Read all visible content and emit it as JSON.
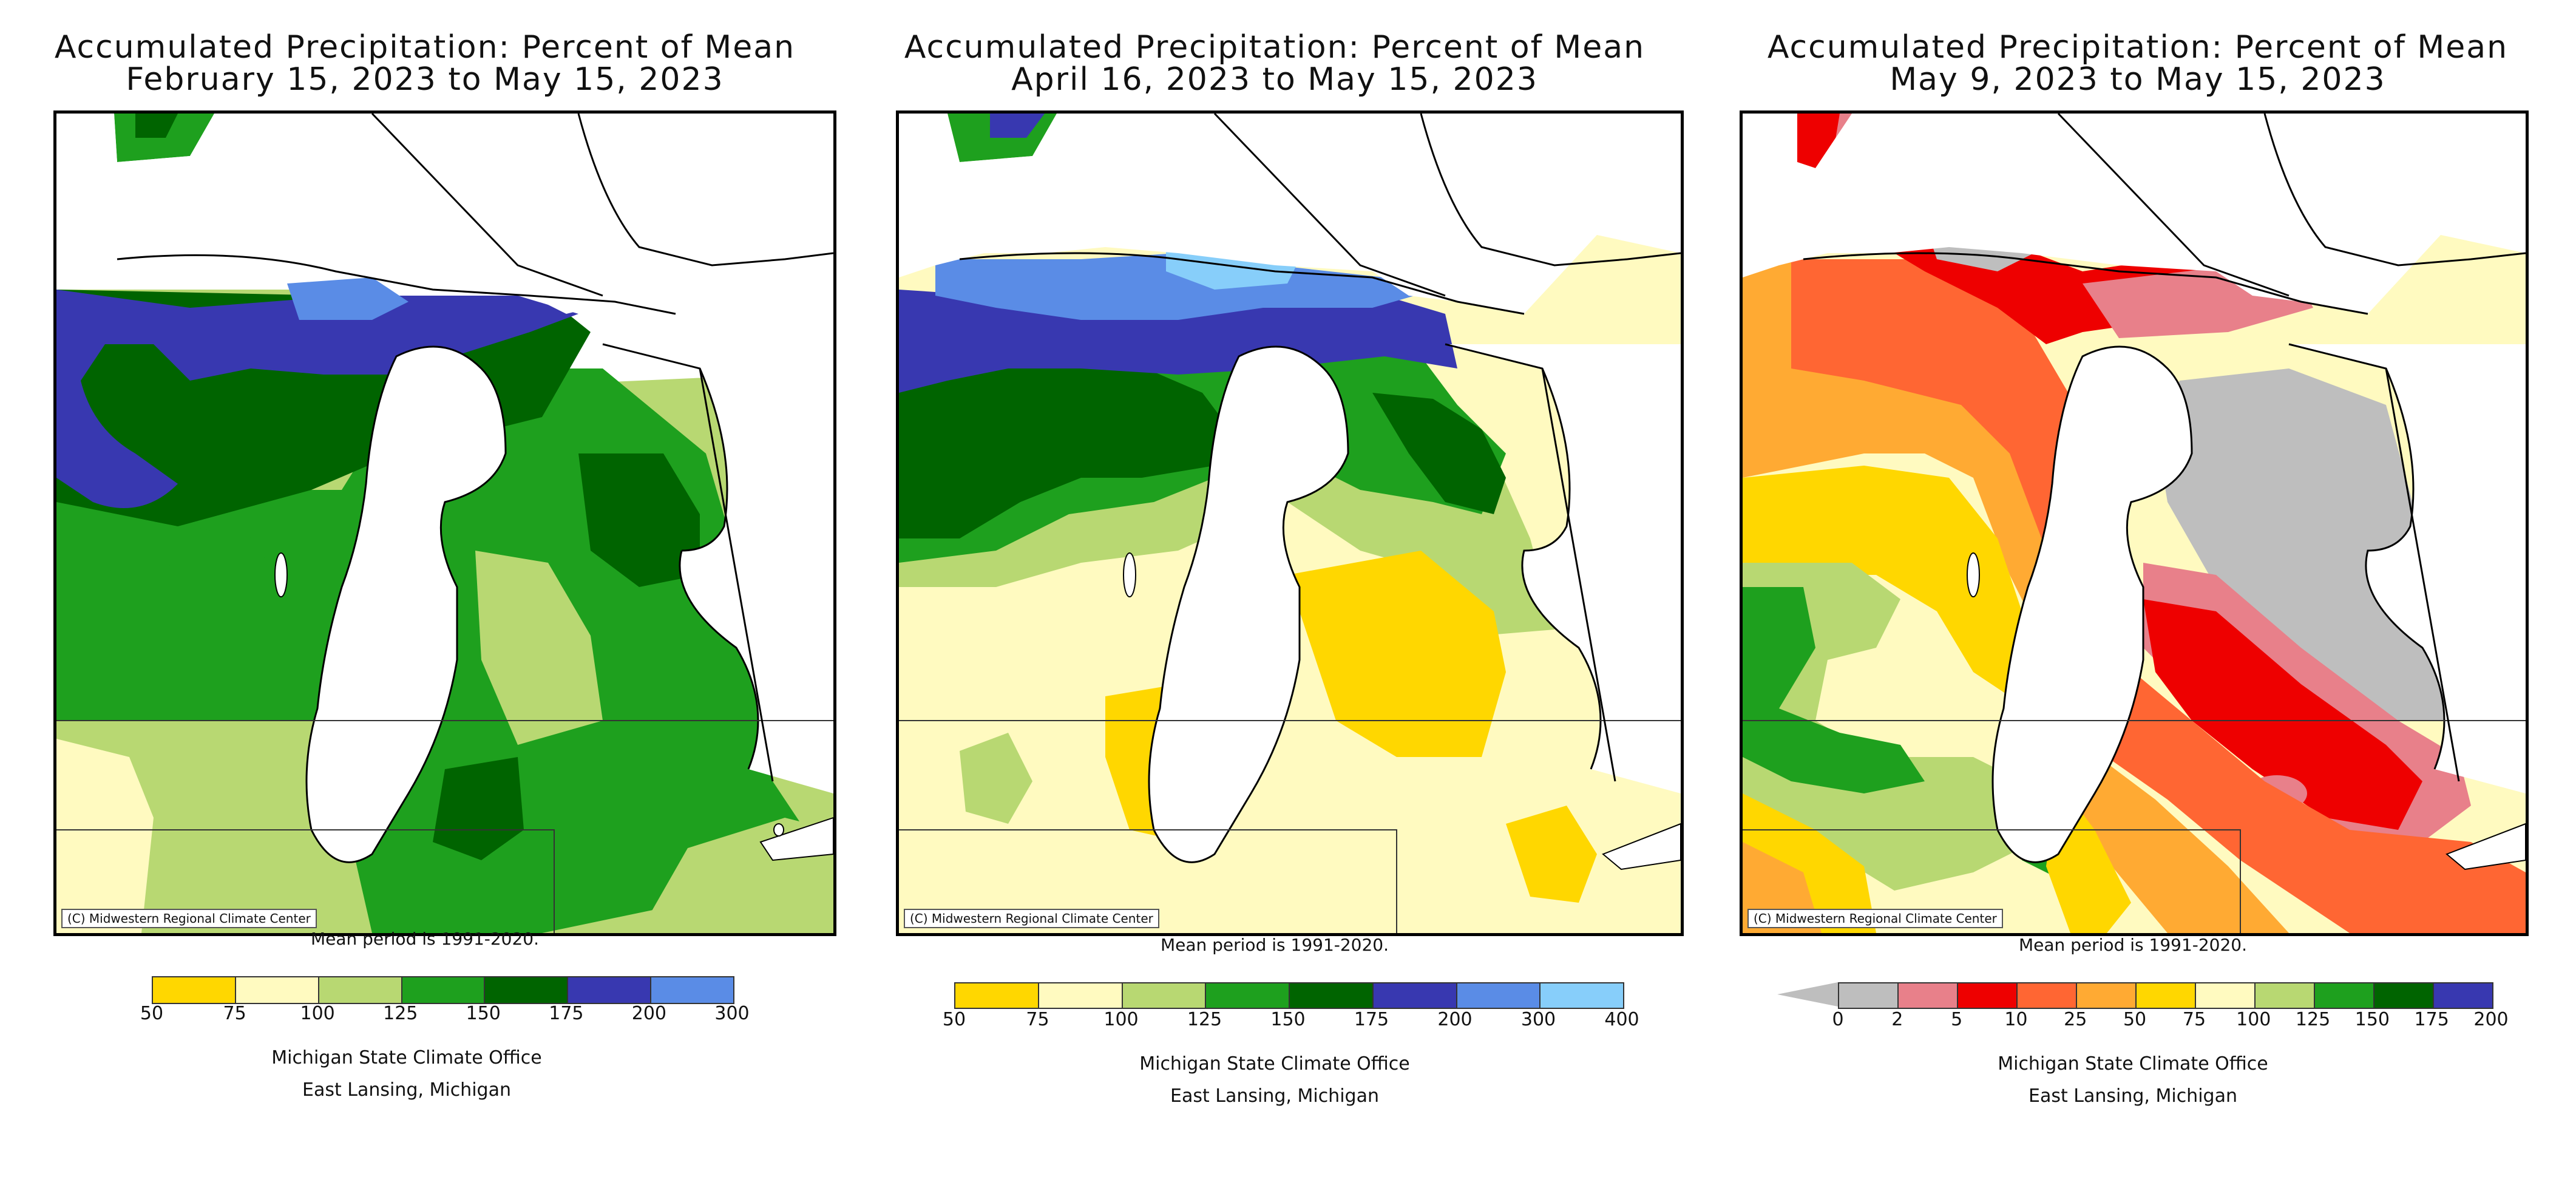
{
  "panels": [
    {
      "title_line1": "Accumulated Precipitation: Percent of Mean",
      "title_line2": "February 15, 2023 to May 15, 2023",
      "credit": "(C) Midwestern Regional Climate Center",
      "mean_note": "Mean period is 1991-2020.",
      "legend_colors": [
        "#ffd700",
        "#fffac0",
        "#b8d872",
        "#1ea01e",
        "#006400",
        "#3838b0",
        "#5a8ce6"
      ],
      "legend_ticks": [
        "50",
        "75",
        "100",
        "125",
        "150",
        "175",
        "200",
        "300"
      ],
      "office_line1": "Michigan State Climate Office",
      "office_line2": "East Lansing, Michigan"
    },
    {
      "title_line1": "Accumulated Precipitation: Percent of Mean",
      "title_line2": "April 16, 2023 to May 15, 2023",
      "credit": "(C) Midwestern Regional Climate Center",
      "mean_note": "Mean period is 1991-2020.",
      "legend_colors": [
        "#ffd700",
        "#fffac0",
        "#b8d872",
        "#1ea01e",
        "#006400",
        "#3838b0",
        "#5a8ce6",
        "#87cefa"
      ],
      "legend_ticks": [
        "50",
        "75",
        "100",
        "125",
        "150",
        "175",
        "200",
        "300",
        "400"
      ],
      "office_line1": "Michigan State Climate Office",
      "office_line2": "East Lansing, Michigan"
    },
    {
      "title_line1": "Accumulated Precipitation: Percent of Mean",
      "title_line2": "May 9, 2023 to May 15, 2023",
      "credit": "(C) Midwestern Regional Climate Center",
      "mean_note": "Mean period is 1991-2020.",
      "legend_colors": [
        "#bebebe",
        "#e8808a",
        "#ee0000",
        "#ff6633",
        "#ffaa33",
        "#ffd700",
        "#fffac0",
        "#b8d872",
        "#1ea01e",
        "#006400",
        "#3838b0"
      ],
      "legend_ticks": [
        "0",
        "2",
        "5",
        "10",
        "25",
        "50",
        "75",
        "100",
        "125",
        "150",
        "175",
        "200"
      ],
      "office_line1": "Michigan State Climate Office",
      "office_line2": "East Lansing, Michigan"
    }
  ]
}
